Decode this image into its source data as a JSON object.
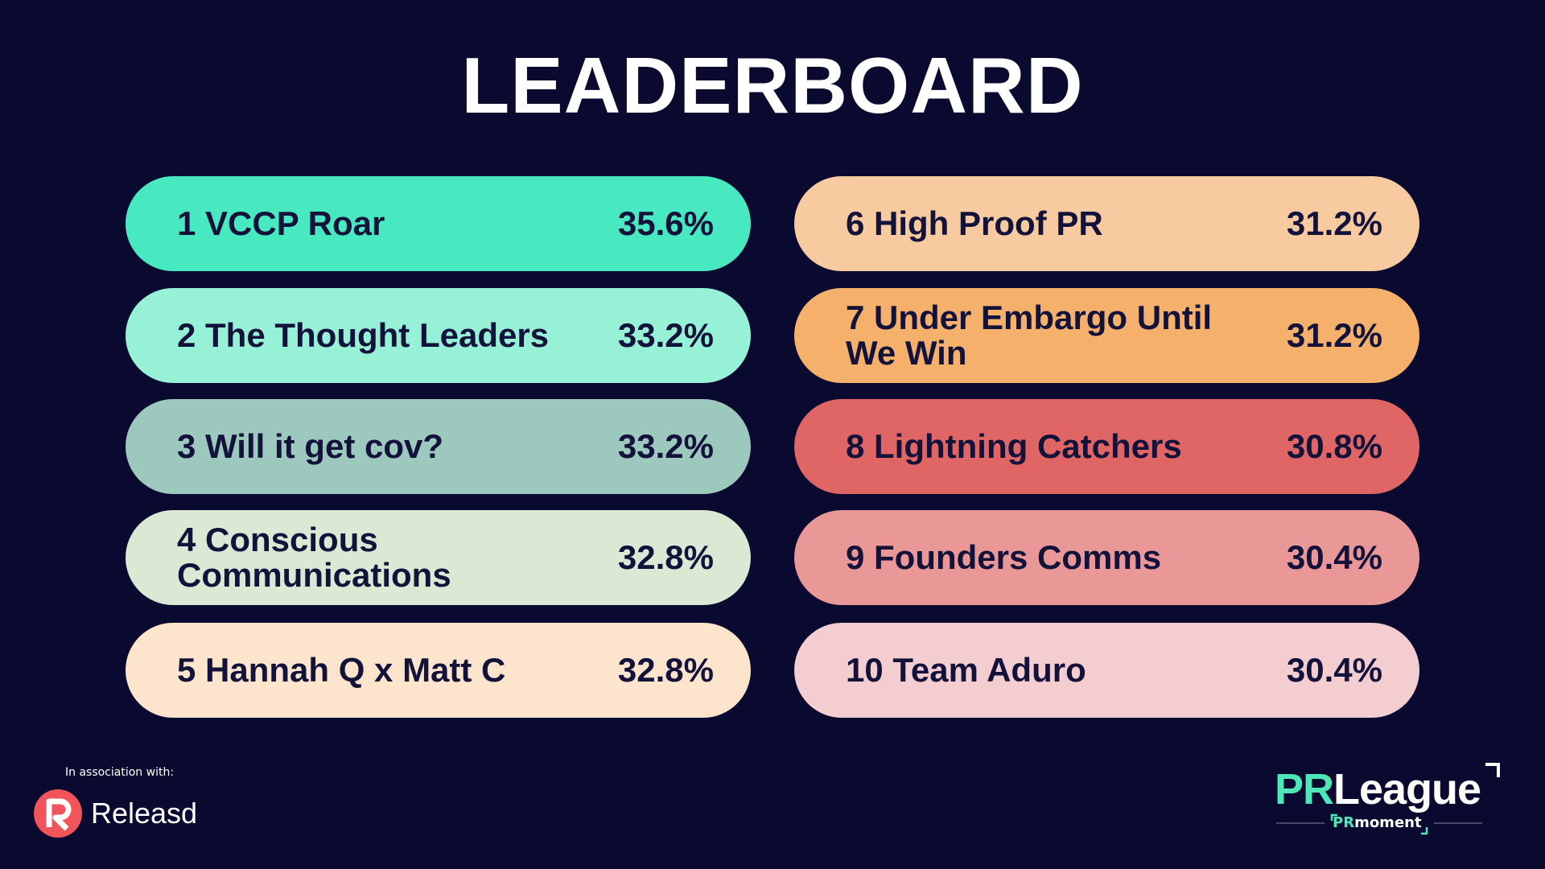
{
  "title": "LEADERBOARD",
  "entries": [
    {
      "label": "1 VCCP Roar",
      "score": "35.6%",
      "color": "#48e9c1"
    },
    {
      "label": "2 The Thought Leaders",
      "score": "33.2%",
      "color": "#97f1d7"
    },
    {
      "label": "3 Will it get cov?",
      "score": "33.2%",
      "color": "#9dc8bd"
    },
    {
      "label": "4 Conscious Communications",
      "score": "32.8%",
      "color": "#d9e9d3"
    },
    {
      "label": "5 Hannah Q x Matt C",
      "score": "32.8%",
      "color": "#fce4cd"
    },
    {
      "label": "6 High Proof PR",
      "score": "31.2%",
      "color": "#f8caa0"
    },
    {
      "label": "7 Under Embargo Until We Win",
      "score": "31.2%",
      "color": "#f5b16c"
    },
    {
      "label": "8 Lightning Catchers",
      "score": "30.8%",
      "color": "#e06565"
    },
    {
      "label": "9 Founders Comms",
      "score": "30.4%",
      "color": "#ea9798"
    },
    {
      "label": "10 Team Aduro",
      "score": "30.4%",
      "color": "#f3cdcf"
    }
  ],
  "footer": {
    "association": "In association with:",
    "releasd": "Releasd",
    "prleague": {
      "pr": "PR",
      "league": "League"
    },
    "prmoment": {
      "pr": "PR",
      "moment": "moment"
    }
  }
}
